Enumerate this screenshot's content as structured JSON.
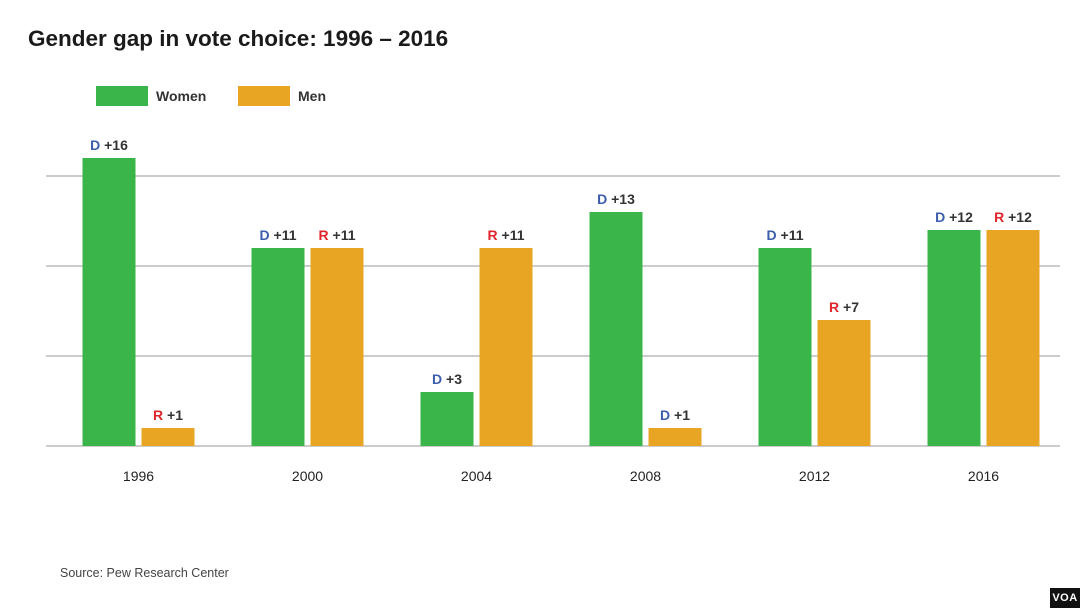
{
  "chart_data": {
    "type": "bar",
    "title": "Gender gap in vote choice: 1996 – 2016",
    "categories": [
      "1996",
      "2000",
      "2004",
      "2008",
      "2012",
      "2016"
    ],
    "series": [
      {
        "name": "Women",
        "color": "#3ab54a",
        "values": [
          16,
          11,
          3,
          13,
          11,
          12
        ],
        "parties": [
          "D",
          "D",
          "D",
          "D",
          "D",
          "D"
        ],
        "labels": [
          "+16",
          "+11",
          "+3",
          "+13",
          "+11",
          "+12"
        ]
      },
      {
        "name": "Men",
        "color": "#e8a523",
        "values": [
          1,
          11,
          11,
          1,
          7,
          12
        ],
        "parties": [
          "R",
          "R",
          "R",
          "D",
          "R",
          "R"
        ],
        "labels": [
          "+1",
          "+11",
          "+11",
          "+1",
          "+7",
          "+12"
        ]
      }
    ],
    "party_colors": {
      "D": "#3b5dab",
      "R": "#e0262b"
    },
    "ylim": [
      0,
      20
    ],
    "gridlines": [
      5,
      10,
      15
    ],
    "xlabel": "",
    "ylabel": "",
    "legend_position": "top-left"
  },
  "source": "Source: Pew Research Center",
  "logo_text": "VOA"
}
